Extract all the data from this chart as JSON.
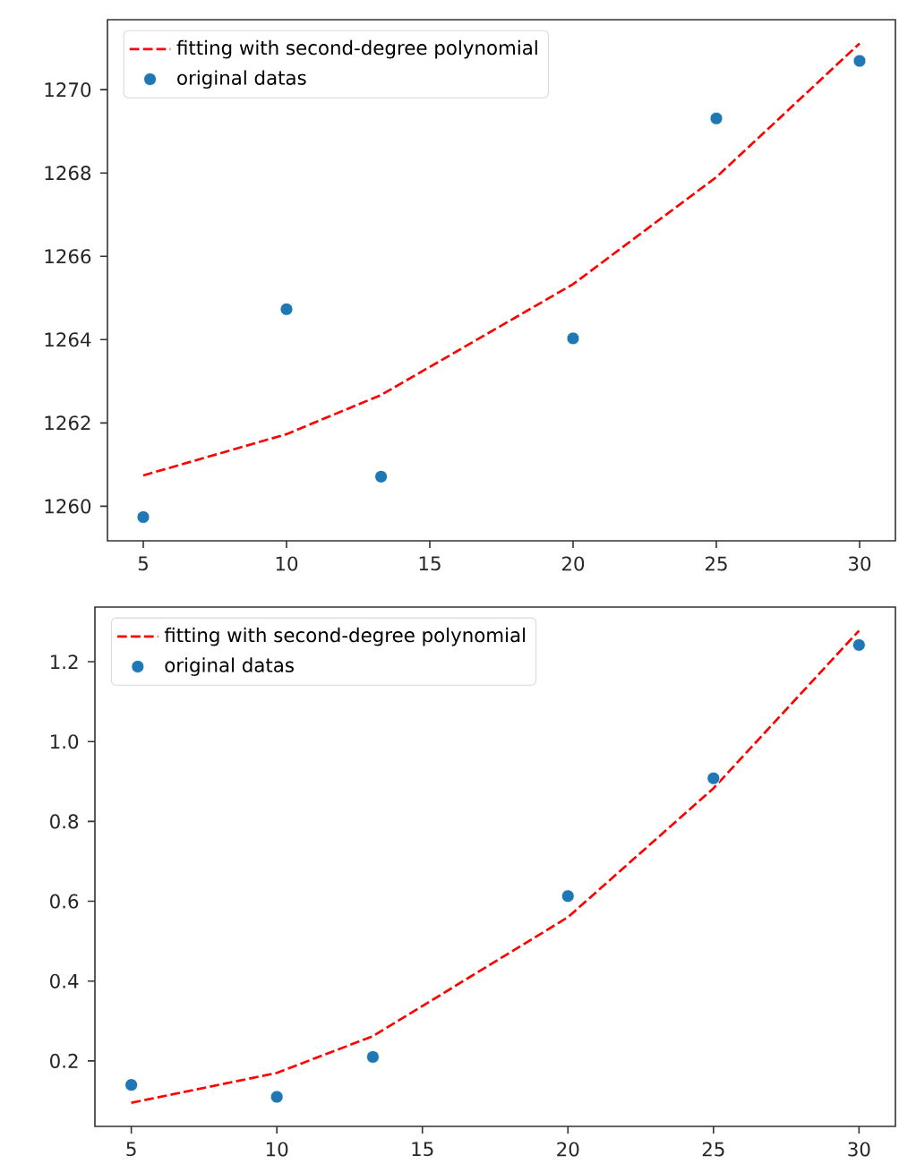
{
  "chart_data": [
    {
      "type": "scatter",
      "xlim": [
        3.75,
        31.25
      ],
      "ylim": [
        1259.17,
        1271.68
      ],
      "xticks": [
        5,
        10,
        15,
        20,
        25,
        30
      ],
      "yticks": [
        1260,
        1262,
        1264,
        1266,
        1268,
        1270
      ],
      "legend": "top left",
      "series": [
        {
          "name": "fitting with second-degree polynomial",
          "type": "line",
          "line_style": "dashed",
          "marker": "none",
          "color": "#ff0000",
          "x": [
            5,
            10,
            13.3,
            20,
            25,
            30
          ],
          "values": [
            1260.74,
            1261.73,
            1262.67,
            1265.33,
            1267.9,
            1271.11
          ]
        },
        {
          "name": "original datas",
          "type": "scatter",
          "marker": "circle",
          "color": "#1f77b4",
          "x": [
            5,
            10,
            13.3,
            20,
            25,
            30
          ],
          "values": [
            1259.74,
            1264.73,
            1260.71,
            1264.03,
            1269.31,
            1270.69
          ]
        }
      ]
    },
    {
      "type": "scatter",
      "xlim": [
        3.75,
        31.25
      ],
      "ylim": [
        0.036,
        1.337
      ],
      "xticks": [
        5,
        10,
        15,
        20,
        25,
        30
      ],
      "yticks": [
        0.2,
        0.4,
        0.6,
        0.8,
        {
          "value": 1.0,
          "label": "1.0"
        },
        1.2
      ],
      "legend": "top left",
      "series": [
        {
          "name": "fitting with second-degree polynomial",
          "type": "line",
          "line_style": "dashed",
          "marker": "none",
          "color": "#ff0000",
          "x": [
            5,
            10,
            13.3,
            20,
            25,
            30
          ],
          "values": [
            0.095,
            0.17,
            0.262,
            0.56,
            0.883,
            1.278
          ]
        },
        {
          "name": "original datas",
          "type": "scatter",
          "marker": "circle",
          "color": "#1f77b4",
          "x": [
            5,
            10,
            13.3,
            20,
            25,
            30
          ],
          "values": [
            0.14,
            0.11,
            0.21,
            0.613,
            0.908,
            1.242
          ]
        }
      ]
    }
  ]
}
